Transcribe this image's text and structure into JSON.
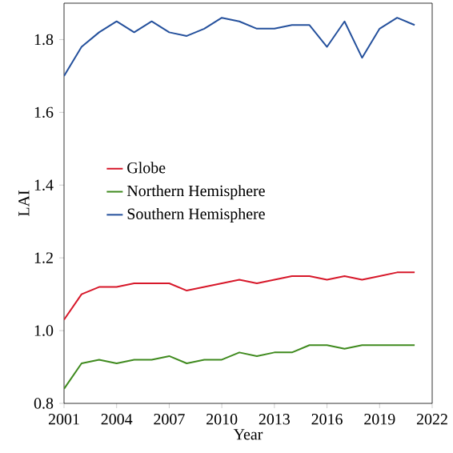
{
  "chart_data": {
    "type": "line",
    "xlabel": "Year",
    "ylabel": "LAI",
    "x": [
      2001,
      2002,
      2003,
      2004,
      2005,
      2006,
      2007,
      2008,
      2009,
      2010,
      2011,
      2012,
      2013,
      2014,
      2015,
      2016,
      2017,
      2018,
      2019,
      2020,
      2021
    ],
    "series": [
      {
        "name": "Globe",
        "color": "#d7182a",
        "values": [
          1.03,
          1.1,
          1.12,
          1.12,
          1.13,
          1.13,
          1.13,
          1.11,
          1.12,
          1.13,
          1.14,
          1.13,
          1.14,
          1.15,
          1.15,
          1.14,
          1.15,
          1.14,
          1.15,
          1.16,
          1.16
        ]
      },
      {
        "name": "Northern Hemisphere",
        "color": "#3f8a1e",
        "values": [
          0.84,
          0.91,
          0.92,
          0.91,
          0.92,
          0.92,
          0.93,
          0.91,
          0.92,
          0.92,
          0.94,
          0.93,
          0.94,
          0.94,
          0.96,
          0.96,
          0.95,
          0.96,
          0.96,
          0.96,
          0.96
        ]
      },
      {
        "name": "Southern Hemisphere",
        "color": "#24509c",
        "values": [
          1.7,
          1.78,
          1.82,
          1.85,
          1.82,
          1.85,
          1.82,
          1.81,
          1.83,
          1.86,
          1.85,
          1.83,
          1.83,
          1.84,
          1.84,
          1.78,
          1.85,
          1.75,
          1.83,
          1.86,
          1.84
        ]
      }
    ],
    "xlim": [
      2001,
      2022
    ],
    "xticks": [
      2001,
      2004,
      2007,
      2010,
      2013,
      2016,
      2019,
      2022
    ],
    "ylim": [
      0.8,
      1.9
    ],
    "yticks": [
      0.8,
      {
        "value": 1.0,
        "label": "1.0"
      },
      1.2,
      1.4,
      1.6,
      1.8
    ],
    "legend": "left",
    "grid": false
  }
}
